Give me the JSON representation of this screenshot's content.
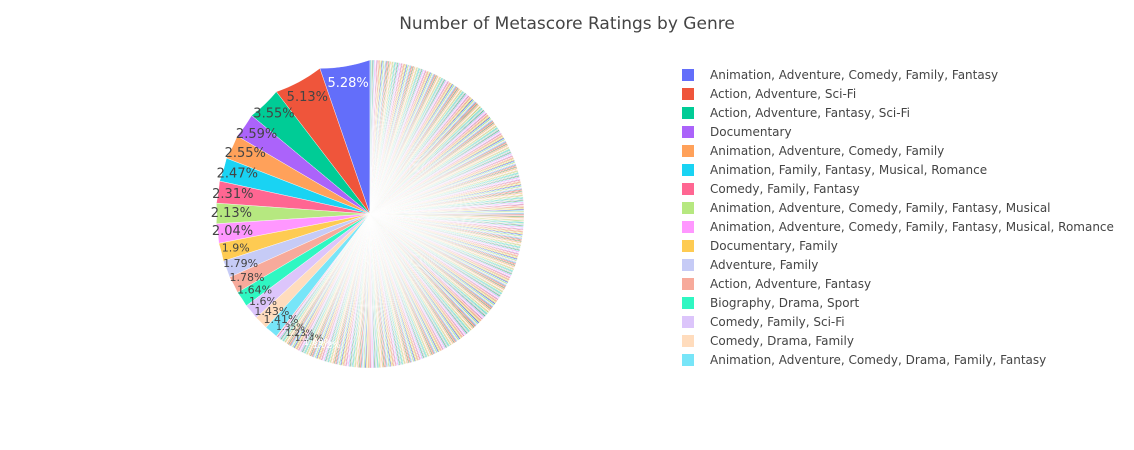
{
  "chart_data": {
    "type": "pie",
    "title": "Number of Metascore Ratings by Genre",
    "legend_position": "right",
    "visible_slices": [
      {
        "label": "Animation, Adventure, Comedy, Family, Fantasy",
        "percent": 5.28,
        "color": "#636efa"
      },
      {
        "label": "Action, Adventure, Sci-Fi",
        "percent": 5.13,
        "color": "#EF553B"
      },
      {
        "label": "Action, Adventure, Fantasy, Sci-Fi",
        "percent": 3.55,
        "color": "#00cc96"
      },
      {
        "label": "Documentary",
        "percent": 2.59,
        "color": "#ab63fa"
      },
      {
        "label": "Animation, Adventure, Comedy, Family",
        "percent": 2.55,
        "color": "#FFA15A"
      },
      {
        "label": "Animation, Family, Fantasy, Musical, Romance",
        "percent": 2.47,
        "color": "#19d3f3"
      },
      {
        "label": "Comedy, Family, Fantasy",
        "percent": 2.31,
        "color": "#FF6692"
      },
      {
        "label": "Animation, Adventure, Comedy, Family, Fantasy, Musical",
        "percent": 2.13,
        "color": "#B6E880"
      },
      {
        "label": "Animation, Adventure, Comedy, Family, Fantasy, Musical, Romance",
        "percent": 2.04,
        "color": "#FF97FF"
      },
      {
        "label": "Documentary, Family",
        "percent": 1.9,
        "color": "#FECB52"
      },
      {
        "label": "Adventure, Family",
        "percent": 1.79,
        "color": "#c6cbf6"
      },
      {
        "label": "Action, Adventure, Fantasy",
        "percent": 1.78,
        "color": "#f7aa9b"
      },
      {
        "label": "Biography, Drama, Sport",
        "percent": 1.64,
        "color": "#2ff7c2"
      },
      {
        "label": "Comedy, Family, Sci-Fi",
        "percent": 1.6,
        "color": "#dcc5fb"
      },
      {
        "label": "Comedy, Drama, Family",
        "percent": 1.43,
        "color": "#ffdcbd"
      },
      {
        "label": "Animation, Adventure, Comedy, Drama, Family, Fantasy",
        "percent": 1.41,
        "color": "#77e5f8"
      }
    ],
    "small_slice_labels": [
      "1.35%",
      "1.23%",
      "1.14%",
      "1.09%",
      "1.02%"
    ],
    "remaining_slices_palette": [
      "#f5d0c0",
      "#e8f0d0",
      "#f8e0f8",
      "#1717d0",
      "#2a8a2a",
      "#e07a20",
      "#20b0c8",
      "#d83070",
      "#8ac83a",
      "#f070f0",
      "#f0b820",
      "#9aa0f0",
      "#f08070",
      "#3ae0b0",
      "#c0a0f0",
      "#f8c090",
      "#60d8f0",
      "#f088a8",
      "#c8f0a0",
      "#e83838"
    ]
  }
}
